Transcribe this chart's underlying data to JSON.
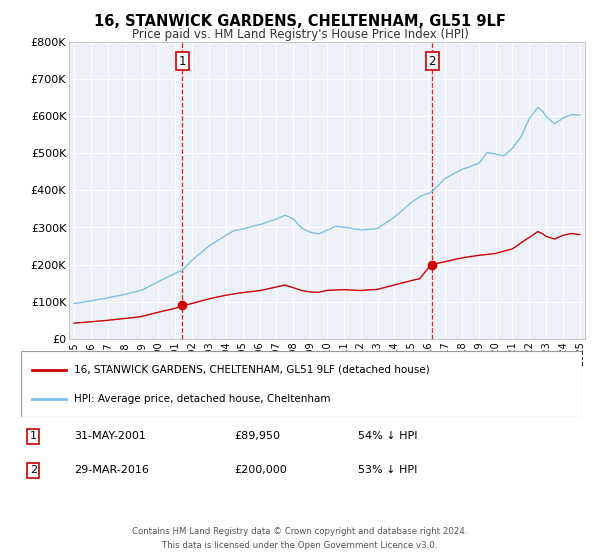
{
  "title": "16, STANWICK GARDENS, CHELTENHAM, GL51 9LF",
  "subtitle": "Price paid vs. HM Land Registry's House Price Index (HPI)",
  "hpi_color": "#7dc0e8",
  "price_color": "#cc0000",
  "transaction1": {
    "date": "31-MAY-2001",
    "price": 89950,
    "pct": "54%",
    "label": "1",
    "x": 2001.42
  },
  "transaction2": {
    "date": "29-MAR-2016",
    "price": 200000,
    "pct": "53%",
    "label": "2",
    "x": 2016.24
  },
  "legend_property": "16, STANWICK GARDENS, CHELTENHAM, GL51 9LF (detached house)",
  "legend_hpi": "HPI: Average price, detached house, Cheltenham",
  "footer1": "Contains HM Land Registry data © Crown copyright and database right 2024.",
  "footer2": "This data is licensed under the Open Government Licence v3.0.",
  "ylim": [
    0,
    800000
  ],
  "yticks": [
    0,
    100000,
    200000,
    300000,
    400000,
    500000,
    600000,
    700000,
    800000
  ],
  "ytick_labels": [
    "£0",
    "£100K",
    "£200K",
    "£300K",
    "£400K",
    "£500K",
    "£600K",
    "£700K",
    "£800K"
  ],
  "xlim_start": 1994.7,
  "xlim_end": 2025.3,
  "xticks": [
    1995,
    1996,
    1997,
    1998,
    1999,
    2000,
    2001,
    2002,
    2003,
    2004,
    2005,
    2006,
    2007,
    2008,
    2009,
    2010,
    2011,
    2012,
    2013,
    2014,
    2015,
    2016,
    2017,
    2018,
    2019,
    2020,
    2021,
    2022,
    2023,
    2024,
    2025
  ],
  "background_color": "#eef2f8",
  "plot_bg": "#eef2f8"
}
